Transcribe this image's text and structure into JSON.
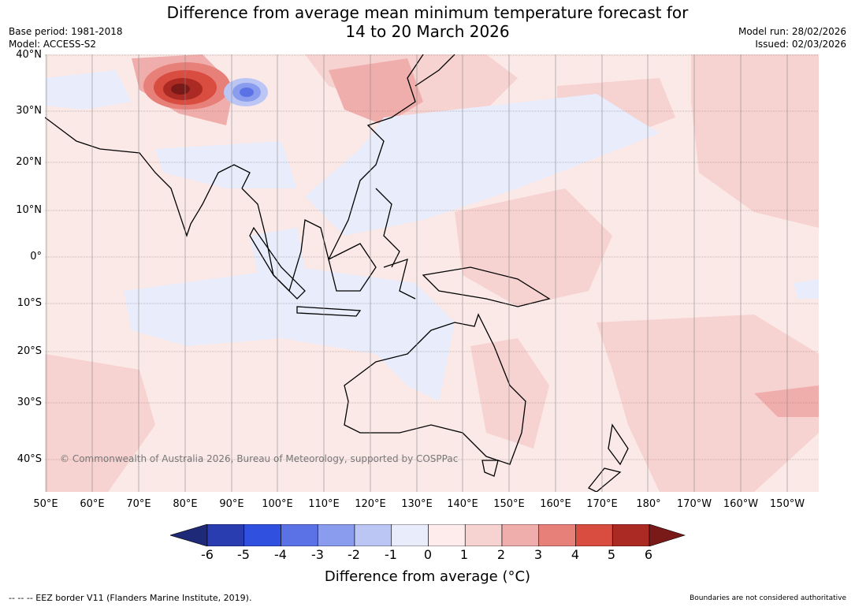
{
  "title_line1": "Difference from average mean minimum temperature forecast for",
  "title_line2": "14 to 20 March 2026",
  "base_period": "Base period: 1981-2018",
  "model": "Model: ACCESS-S2",
  "model_run": "Model run: 28/02/2026",
  "issued": "Issued: 02/03/2026",
  "lat_labels": [
    "40°N",
    "30°N",
    "20°N",
    "10°N",
    "0°",
    "10°S",
    "20°S",
    "30°S",
    "40°S"
  ],
  "lon_labels": [
    "50°E",
    "60°E",
    "70°E",
    "80°E",
    "90°E",
    "100°E",
    "110°E",
    "120°E",
    "130°E",
    "140°E",
    "150°E",
    "160°E",
    "170°E",
    "180°",
    "170°W",
    "160°W",
    "150°W"
  ],
  "copyright": "© Commonwealth of Australia 2026, Bureau of Meteorology, supported by COSPPac",
  "colorbar": {
    "labels": [
      "-6",
      "-5",
      "-4",
      "-3",
      "-2",
      "-1",
      "0",
      "1",
      "2",
      "3",
      "4",
      "5",
      "6"
    ],
    "colors": [
      "#1e2a78",
      "#2a3db0",
      "#3050e0",
      "#5a72e6",
      "#8a9cee",
      "#bcc6f5",
      "#e8ecfb",
      "#fdeceb",
      "#f6d2d0",
      "#efaeab",
      "#e8807a",
      "#d94c40",
      "#ac2a24",
      "#7a1a18"
    ],
    "title": "Difference from average (°C)"
  },
  "footer_left": "--  --  -- EEZ border V11 (Flanders Marine Institute, 2019).",
  "footer_right": "Boundaries are not considered authoritative"
}
